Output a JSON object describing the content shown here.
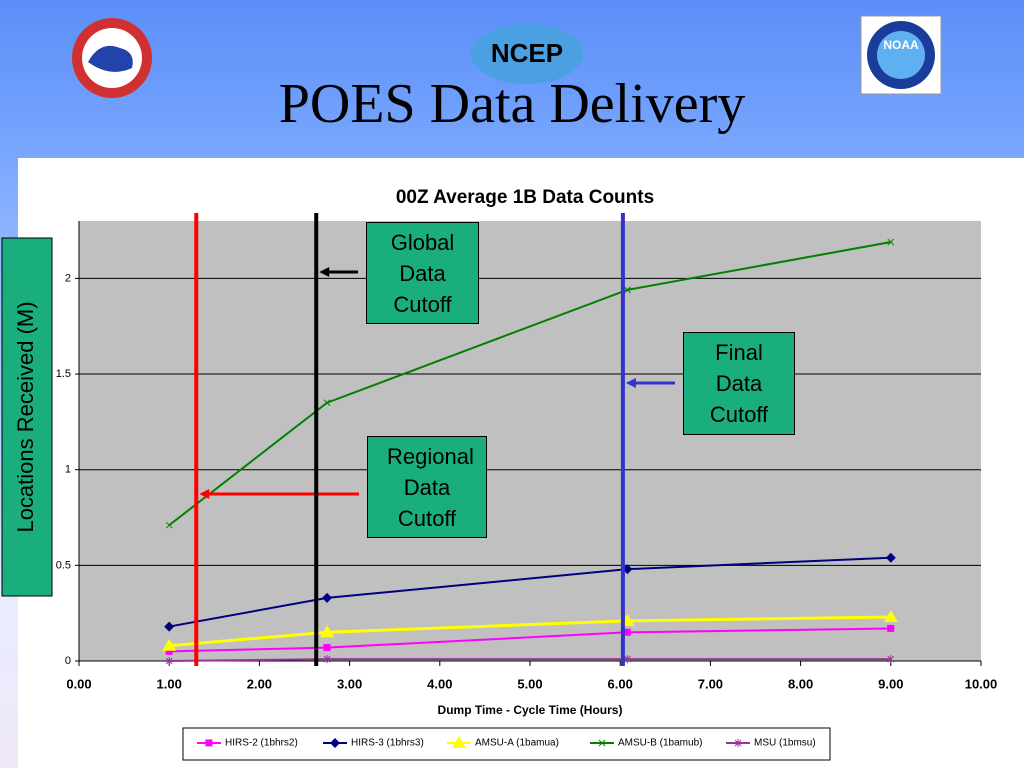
{
  "slide": {
    "title": "POES Data Delivery",
    "logo_left": "NCEP",
    "logo_right": "NOAA"
  },
  "chart_data": {
    "type": "line",
    "title": "00Z Average 1B Data Counts",
    "xlabel": "Dump Time - Cycle Time (Hours)",
    "ylabel": "Locations Received (M)",
    "x": [
      1.0,
      2.75,
      6.08,
      9.0
    ],
    "series": [
      {
        "name": "HIRS-2 (1bhrs2)",
        "color": "#ff00ff",
        "marker": "square",
        "values": [
          0.05,
          0.07,
          0.15,
          0.17
        ]
      },
      {
        "name": "HIRS-3 (1bhrs3)",
        "color": "#000080",
        "marker": "diamond",
        "values": [
          0.18,
          0.33,
          0.48,
          0.54
        ]
      },
      {
        "name": "AMSU-A (1bamua)",
        "color": "#ffff00",
        "marker": "triangle",
        "values": [
          0.08,
          0.15,
          0.21,
          0.23
        ]
      },
      {
        "name": "AMSU-B (1bamub)",
        "color": "#008000",
        "marker": "x",
        "values": [
          0.71,
          1.35,
          1.94,
          2.19
        ]
      },
      {
        "name": "MSU (1bmsu)",
        "color": "#993399",
        "marker": "star",
        "values": [
          0.0,
          0.01,
          0.01,
          0.01
        ]
      }
    ],
    "xlim": [
      0,
      10
    ],
    "ylim": [
      0,
      2.3
    ],
    "xticks": [
      {
        "value": 0,
        "label": "0.00"
      },
      {
        "value": 1,
        "label": "1.00"
      },
      {
        "value": 2,
        "label": "2.00"
      },
      {
        "value": 3,
        "label": "3.00"
      },
      {
        "value": 4,
        "label": "4.00"
      },
      {
        "value": 5,
        "label": "5.00"
      },
      {
        "value": 6,
        "label": "6.00"
      },
      {
        "value": 7,
        "label": "7.00"
      },
      {
        "value": 8,
        "label": "8.00"
      },
      {
        "value": 9,
        "label": "9.00"
      },
      {
        "value": 10,
        "label": "10.00"
      }
    ],
    "yticks": [
      0,
      0.5,
      1,
      1.5,
      2
    ],
    "grid": true,
    "annotations": [
      {
        "text": "Regional Data Cutoff",
        "x": 1.3,
        "color": "#ff0000"
      },
      {
        "text": "Global Data Cutoff",
        "x": 2.63,
        "color": "#000000"
      },
      {
        "text": "Final Data Cutoff",
        "x": 6.03,
        "color": "#3333cc"
      }
    ]
  }
}
